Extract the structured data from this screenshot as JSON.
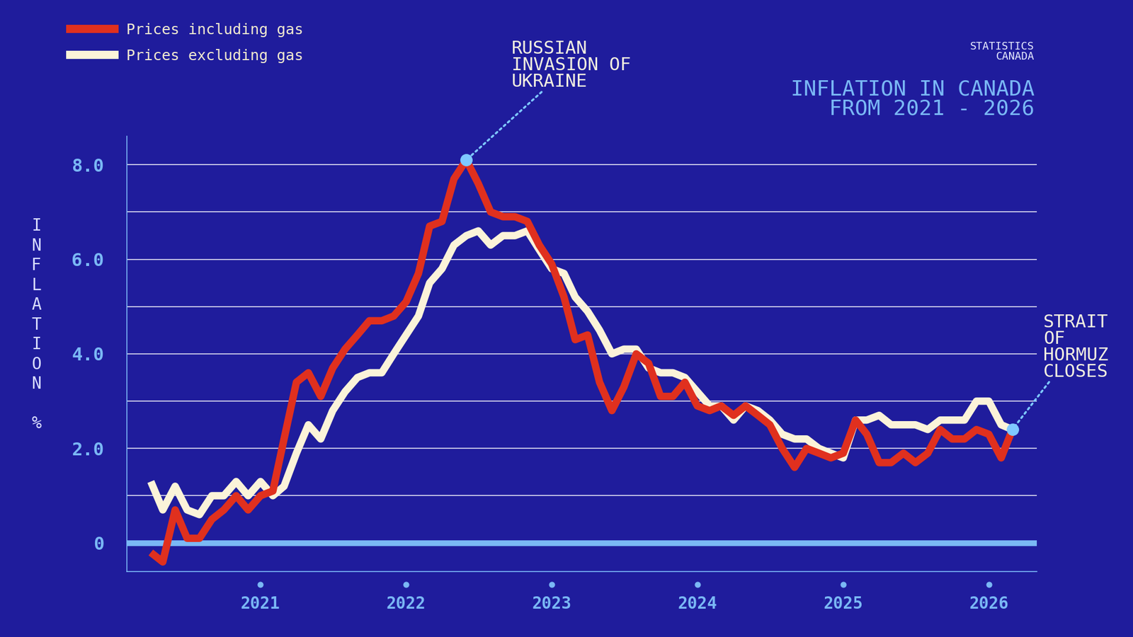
{
  "chart_data": {
    "type": "line",
    "title": "INFLATION IN CANADA\nFROM 2021 - 2026",
    "source": "STATISTICS\nCANADA",
    "y_label": "INFLATION %",
    "x": [
      "2020-04",
      "2020-05",
      "2020-06",
      "2020-07",
      "2020-08",
      "2020-09",
      "2020-10",
      "2020-11",
      "2020-12",
      "2021-01",
      "2021-02",
      "2021-03",
      "2021-04",
      "2021-05",
      "2021-06",
      "2021-07",
      "2021-08",
      "2021-09",
      "2021-10",
      "2021-11",
      "2021-12",
      "2022-01",
      "2022-02",
      "2022-03",
      "2022-04",
      "2022-05",
      "2022-06",
      "2022-07",
      "2022-08",
      "2022-09",
      "2022-10",
      "2022-11",
      "2022-12",
      "2023-01",
      "2023-02",
      "2023-03",
      "2023-04",
      "2023-05",
      "2023-06",
      "2023-07",
      "2023-08",
      "2023-09",
      "2023-10",
      "2023-11",
      "2023-12",
      "2024-01",
      "2024-02",
      "2024-03",
      "2024-04",
      "2024-05",
      "2024-06",
      "2024-07",
      "2024-08",
      "2024-09",
      "2024-10",
      "2024-11",
      "2024-12",
      "2025-01",
      "2025-02",
      "2025-03",
      "2025-04",
      "2025-05",
      "2025-06",
      "2025-07",
      "2025-08",
      "2025-09",
      "2025-10",
      "2025-11",
      "2025-12",
      "2026-01",
      "2026-02",
      "2026-03"
    ],
    "series": [
      {
        "name": "Prices excluding gas",
        "color": "#fbf3d9",
        "values": [
          1.3,
          0.7,
          1.2,
          0.7,
          0.6,
          1.0,
          1.0,
          1.3,
          1.0,
          1.3,
          1.0,
          1.2,
          1.9,
          2.5,
          2.2,
          2.8,
          3.2,
          3.5,
          3.6,
          3.6,
          4.0,
          4.4,
          4.8,
          5.5,
          5.8,
          6.3,
          6.5,
          6.6,
          6.3,
          6.5,
          6.5,
          6.6,
          6.2,
          5.8,
          5.7,
          5.2,
          4.9,
          4.5,
          4.0,
          4.1,
          4.1,
          3.7,
          3.6,
          3.6,
          3.5,
          3.2,
          2.9,
          2.9,
          2.6,
          2.9,
          2.8,
          2.6,
          2.3,
          2.2,
          2.2,
          2.0,
          1.9,
          1.8,
          2.6,
          2.6,
          2.7,
          2.5,
          2.5,
          2.5,
          2.4,
          2.6,
          2.6,
          2.6,
          3.0,
          3.0,
          2.5,
          2.4
        ]
      },
      {
        "name": "Prices including gas",
        "color": "#e0301e",
        "values": [
          -0.2,
          -0.4,
          0.7,
          0.1,
          0.1,
          0.5,
          0.7,
          1.0,
          0.7,
          1.0,
          1.1,
          2.2,
          3.4,
          3.6,
          3.1,
          3.7,
          4.1,
          4.4,
          4.7,
          4.7,
          4.8,
          5.1,
          5.7,
          6.7,
          6.8,
          7.7,
          8.1,
          7.6,
          7.0,
          6.9,
          6.9,
          6.8,
          6.3,
          5.9,
          5.2,
          4.3,
          4.4,
          3.4,
          2.8,
          3.3,
          4.0,
          3.8,
          3.1,
          3.1,
          3.4,
          2.9,
          2.8,
          2.9,
          2.7,
          2.9,
          2.7,
          2.5,
          2.0,
          1.6,
          2.0,
          1.9,
          1.8,
          1.9,
          2.6,
          2.3,
          1.7,
          1.7,
          1.9,
          1.7,
          1.9,
          2.4,
          2.2,
          2.2,
          2.4,
          2.3,
          1.8,
          2.4
        ]
      }
    ],
    "annotations": [
      {
        "text": "RUSSIAN\nINVASION OF\nUKRAINE",
        "x": "2022-06",
        "y": 8.1
      },
      {
        "text": "STRAIT\nOF\nHORMUZ\nCLOSES",
        "x": "2026-03",
        "y": 2.4
      }
    ],
    "xlim": [
      "2020-02",
      "2026-05"
    ],
    "xticks": [
      {
        "value": "2021-01",
        "label": "2021"
      },
      {
        "value": "2022-01",
        "label": "2022"
      },
      {
        "value": "2023-01",
        "label": "2023"
      },
      {
        "value": "2024-01",
        "label": "2024"
      },
      {
        "value": "2025-01",
        "label": "2025"
      },
      {
        "value": "2026-01",
        "label": "2026"
      }
    ],
    "ylim": [
      -0.6,
      8.6
    ],
    "yticks": [
      0,
      {
        "value": 2,
        "label": "2.0"
      },
      {
        "value": 4,
        "label": "4.0"
      },
      {
        "value": 6,
        "label": "6.0"
      },
      {
        "value": 8,
        "label": "8.0"
      }
    ],
    "grid": true,
    "legend": "upper left"
  }
}
